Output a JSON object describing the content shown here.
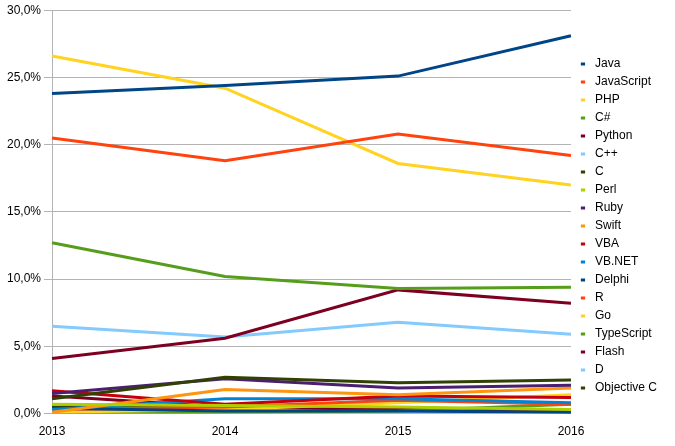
{
  "chart_data": {
    "type": "line",
    "categories": [
      "2013",
      "2014",
      "2015",
      "2016"
    ],
    "ylim": [
      0,
      30
    ],
    "yticks": [
      {
        "value": 0,
        "label": "0,0%"
      },
      {
        "value": 5,
        "label": "5,0%"
      },
      {
        "value": 10,
        "label": "10,0%"
      },
      {
        "value": 15,
        "label": "15,0%"
      },
      {
        "value": 20,
        "label": "20,0%"
      },
      {
        "value": 25,
        "label": "25,0%"
      },
      {
        "value": 30,
        "label": "30,0%"
      }
    ],
    "grid": true,
    "legend": "right",
    "series": [
      {
        "name": "Java",
        "color": "#004586",
        "values": [
          23.8,
          24.4,
          25.1,
          28.1
        ]
      },
      {
        "name": "JavaScript",
        "color": "#ff420e",
        "values": [
          20.5,
          18.8,
          20.8,
          19.2
        ]
      },
      {
        "name": "PHP",
        "color": "#ffd320",
        "values": [
          26.6,
          24.2,
          18.6,
          17.0
        ]
      },
      {
        "name": "C#",
        "color": "#579d1c",
        "values": [
          12.7,
          10.2,
          9.3,
          9.4
        ]
      },
      {
        "name": "Python",
        "color": "#7e0021",
        "values": [
          4.1,
          5.6,
          9.2,
          8.2
        ]
      },
      {
        "name": "C++",
        "color": "#83caff",
        "values": [
          6.5,
          5.7,
          6.8,
          5.9
        ]
      },
      {
        "name": "C",
        "color": "#314004",
        "values": [
          1.1,
          2.7,
          2.3,
          2.5
        ]
      },
      {
        "name": "Perl",
        "color": "#aecf00",
        "values": [
          0.7,
          0.6,
          0.5,
          0.3
        ]
      },
      {
        "name": "Ruby",
        "color": "#4b1f6f",
        "values": [
          1.5,
          2.6,
          1.9,
          2.1
        ]
      },
      {
        "name": "Swift",
        "color": "#ff950e",
        "values": [
          0.1,
          1.8,
          1.4,
          1.9
        ]
      },
      {
        "name": "VBA",
        "color": "#c5000b",
        "values": [
          1.7,
          0.7,
          1.3,
          1.2
        ]
      },
      {
        "name": "VB.NET",
        "color": "#0084d1",
        "values": [
          0.3,
          1.1,
          1.1,
          0.8
        ]
      },
      {
        "name": "Delphi",
        "color": "#004586",
        "values": [
          0.4,
          0.2,
          0.2,
          0.1
        ]
      },
      {
        "name": "R",
        "color": "#ff420e",
        "values": [
          0.3,
          0.5,
          1.0,
          0.7
        ]
      },
      {
        "name": "Go",
        "color": "#ffd320",
        "values": [
          0.1,
          0.3,
          0.8,
          1.4
        ]
      },
      {
        "name": "TypeScript",
        "color": "#579d1c",
        "values": [
          0.0,
          0.1,
          0.2,
          0.7
        ]
      },
      {
        "name": "Flash",
        "color": "#7e0021",
        "values": [
          1.3,
          0.5,
          0.3,
          0.1
        ]
      },
      {
        "name": "D",
        "color": "#83caff",
        "values": [
          0.1,
          0.1,
          0.1,
          0.1
        ]
      },
      {
        "name": "Objective C",
        "color": "#314004",
        "values": [
          0.5,
          0.6,
          0.4,
          0.2
        ]
      }
    ]
  }
}
